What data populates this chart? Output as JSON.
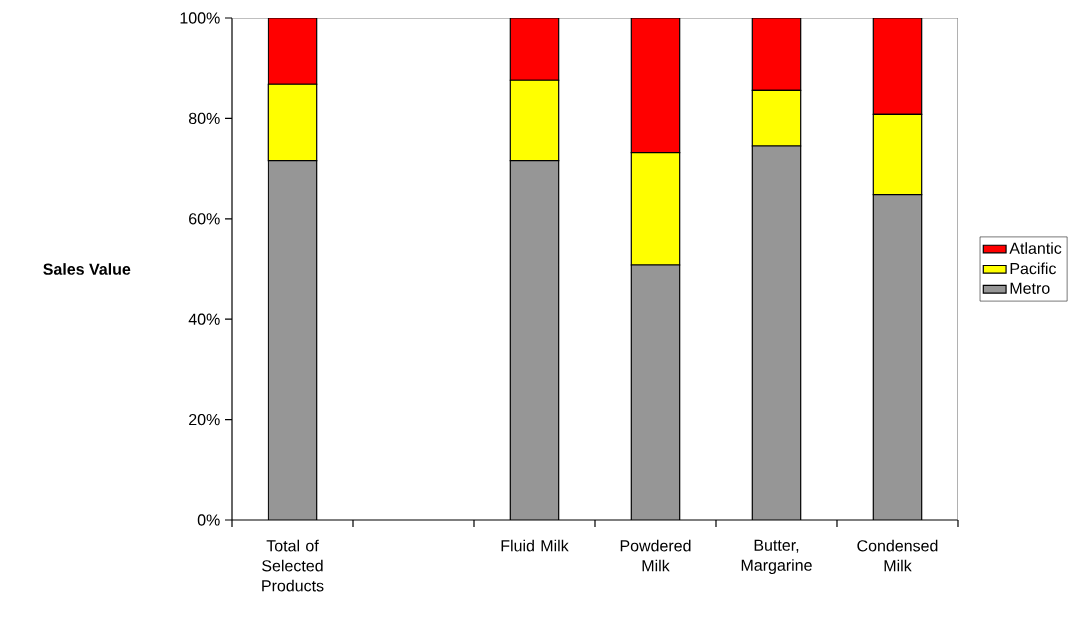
{
  "chart_data": {
    "type": "bar",
    "stacked": true,
    "categories": [
      "Total of Selected Products",
      null,
      "Fluid Milk",
      "Powdered Milk",
      "Butter, Margarine",
      "Condensed Milk"
    ],
    "ylabel": "Sales Value",
    "series": [
      {
        "name": "Metro",
        "color": "#969696",
        "values": [
          71.6,
          null,
          71.6,
          50.8,
          74.5,
          64.8
        ]
      },
      {
        "name": "Pacific",
        "color": "#ffff00",
        "values": [
          15.2,
          null,
          16.0,
          22.4,
          11.1,
          16.0
        ]
      },
      {
        "name": "Atlantic",
        "color": "#ff0000",
        "values": [
          13.2,
          null,
          12.4,
          26.8,
          14.4,
          19.2
        ]
      }
    ],
    "ylim": [
      0,
      100
    ],
    "yticks": [
      {
        "value": 0,
        "label": "0%"
      },
      {
        "value": 20,
        "label": "20%"
      },
      {
        "value": 40,
        "label": "40%"
      },
      {
        "value": 60,
        "label": "60%"
      },
      {
        "value": 80,
        "label": "80%"
      },
      {
        "value": 100,
        "label": "100%"
      }
    ],
    "legend": "right",
    "grid": false
  }
}
